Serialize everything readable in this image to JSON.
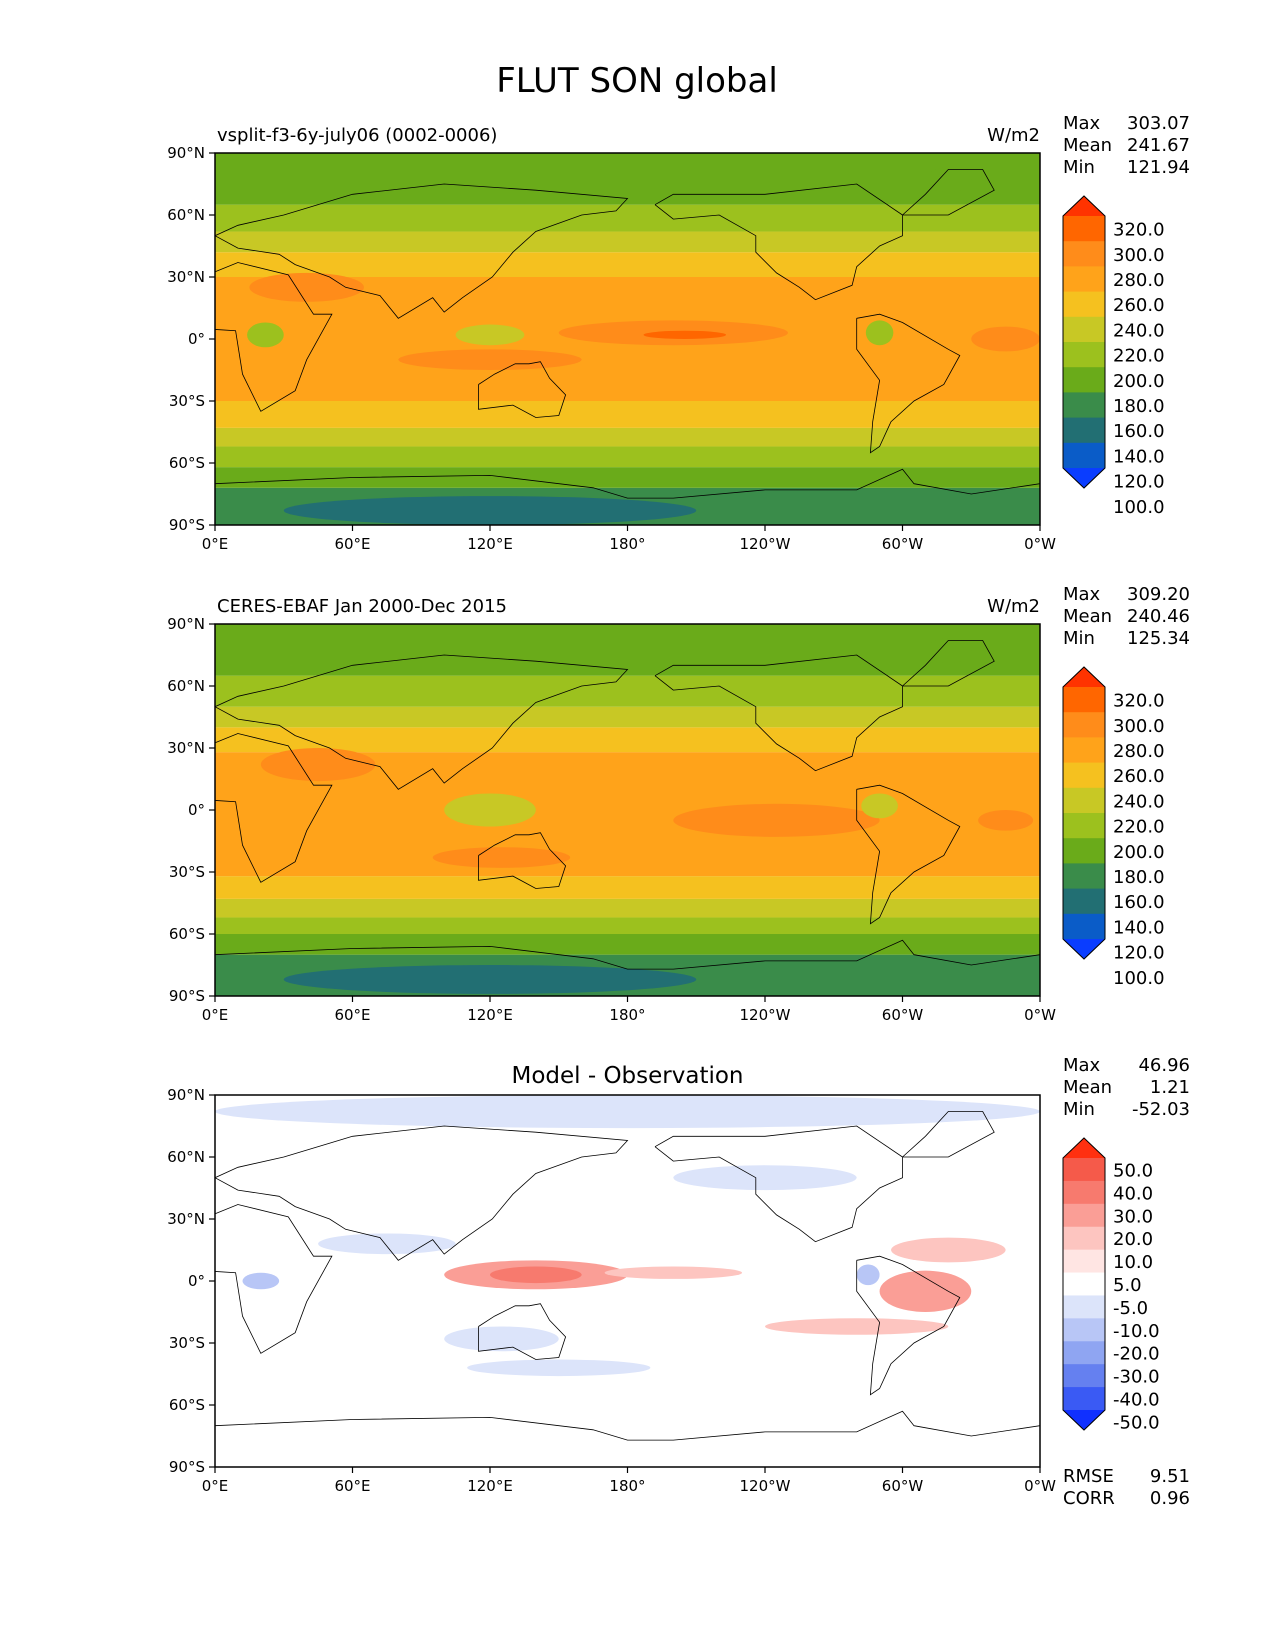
{
  "title": "FLUT SON global",
  "tick_labels": {
    "lat": [
      "90°N",
      "60°N",
      "30°N",
      "0°",
      "30°S",
      "60°S",
      "90°S"
    ],
    "lon": [
      "0°E",
      "60°E",
      "120°E",
      "180°",
      "120°W",
      "60°W",
      "0°W"
    ]
  },
  "panels": [
    {
      "id": "model",
      "left_label": "vsplit-f3-6y-july06 (0002-0006)",
      "units": "W/m2",
      "center_title": "",
      "stats": [
        {
          "label": "Max",
          "value": "303.07"
        },
        {
          "label": "Mean",
          "value": "241.67"
        },
        {
          "label": "Min",
          "value": "121.94"
        }
      ],
      "colorbar": {
        "labels": [
          "320.0",
          "300.0",
          "280.0",
          "260.0",
          "240.0",
          "220.0",
          "200.0",
          "180.0",
          "160.0",
          "140.0",
          "120.0",
          "100.0"
        ],
        "colors": [
          "#ff3300",
          "#ff6600",
          "#ff8c1a",
          "#ffa31a",
          "#f5c11f",
          "#c8c825",
          "#9cc11e",
          "#6aab1a",
          "#3a8c4a",
          "#226f73",
          "#0a5cc8",
          "#0a3dff"
        ]
      }
    },
    {
      "id": "obs",
      "left_label": "CERES-EBAF Jan 2000-Dec 2015",
      "units": "W/m2",
      "center_title": "",
      "stats": [
        {
          "label": "Max",
          "value": "309.20"
        },
        {
          "label": "Mean",
          "value": "240.46"
        },
        {
          "label": "Min",
          "value": "125.34"
        }
      ],
      "colorbar": {
        "labels": [
          "320.0",
          "300.0",
          "280.0",
          "260.0",
          "240.0",
          "220.0",
          "200.0",
          "180.0",
          "160.0",
          "140.0",
          "120.0",
          "100.0"
        ],
        "colors": [
          "#ff3300",
          "#ff6600",
          "#ff8c1a",
          "#ffa31a",
          "#f5c11f",
          "#c8c825",
          "#9cc11e",
          "#6aab1a",
          "#3a8c4a",
          "#226f73",
          "#0a5cc8",
          "#0a3dff"
        ]
      }
    },
    {
      "id": "diff",
      "left_label": "",
      "units": "",
      "center_title": "Model - Observation",
      "stats": [
        {
          "label": "Max",
          "value": "46.96"
        },
        {
          "label": "Mean",
          "value": "1.21"
        },
        {
          "label": "Min",
          "value": "-52.03"
        }
      ],
      "colorbar": {
        "labels": [
          "50.0",
          "40.0",
          "30.0",
          "20.0",
          "10.0",
          "5.0",
          "-5.0",
          "-10.0",
          "-20.0",
          "-30.0",
          "-40.0",
          "-50.0"
        ],
        "colors": [
          "#ff3010",
          "#f55a4a",
          "#f77a6e",
          "#fa9e96",
          "#fdc5c0",
          "#ffe5e3",
          "#ffffff",
          "#dce4fa",
          "#b8c6f6",
          "#8fa5f2",
          "#6580f0",
          "#3a5af4",
          "#1030ff"
        ]
      },
      "metrics": [
        {
          "label": "RMSE",
          "value": "9.51"
        },
        {
          "label": "CORR",
          "value": "0.96"
        }
      ]
    }
  ],
  "map_fields": {
    "model": [
      {
        "c": "#3a8c4a",
        "lat0": -90,
        "lat1": -72
      },
      {
        "c": "#6aab1a",
        "lat0": -72,
        "lat1": -62
      },
      {
        "c": "#9cc11e",
        "lat0": -62,
        "lat1": -52
      },
      {
        "c": "#c8c825",
        "lat0": -52,
        "lat1": -43
      },
      {
        "c": "#f5c11f",
        "lat0": -43,
        "lat1": -30
      },
      {
        "c": "#ffa31a",
        "lat0": -30,
        "lat1": 30
      },
      {
        "c": "#f5c11f",
        "lat0": 30,
        "lat1": 42
      },
      {
        "c": "#c8c825",
        "lat0": 42,
        "lat1": 52
      },
      {
        "c": "#9cc11e",
        "lat0": 52,
        "lat1": 65
      },
      {
        "c": "#6aab1a",
        "lat0": 65,
        "lat1": 90
      }
    ],
    "obs": [
      {
        "c": "#3a8c4a",
        "lat0": -90,
        "lat1": -70
      },
      {
        "c": "#6aab1a",
        "lat0": -70,
        "lat1": -60
      },
      {
        "c": "#9cc11e",
        "lat0": -60,
        "lat1": -52
      },
      {
        "c": "#c8c825",
        "lat0": -52,
        "lat1": -43
      },
      {
        "c": "#f5c11f",
        "lat0": -43,
        "lat1": -32
      },
      {
        "c": "#ffa31a",
        "lat0": -32,
        "lat1": 28
      },
      {
        "c": "#f5c11f",
        "lat0": 28,
        "lat1": 40
      },
      {
        "c": "#c8c825",
        "lat0": 40,
        "lat1": 50
      },
      {
        "c": "#9cc11e",
        "lat0": 50,
        "lat1": 65
      },
      {
        "c": "#6aab1a",
        "lat0": 65,
        "lat1": 90
      }
    ],
    "diff": [
      {
        "c": "#ffffff",
        "lat0": -90,
        "lat1": 90
      }
    ]
  },
  "blobs": {
    "model": [
      {
        "c": "#226f73",
        "lon": 120,
        "lat": -83,
        "rx": 90,
        "ry": 7
      },
      {
        "c": "#ff8c1a",
        "lon": 40,
        "lat": 25,
        "rx": 25,
        "ry": 7
      },
      {
        "c": "#ff8c1a",
        "lon": 200,
        "lat": 3,
        "rx": 50,
        "ry": 6
      },
      {
        "c": "#ff6600",
        "lon": 205,
        "lat": 2,
        "rx": 18,
        "ry": 2
      },
      {
        "c": "#ff8c1a",
        "lon": 345,
        "lat": 0,
        "rx": 15,
        "ry": 6
      },
      {
        "c": "#ff8c1a",
        "lon": 120,
        "lat": -10,
        "rx": 40,
        "ry": 5
      },
      {
        "c": "#9cc11e",
        "lon": 22,
        "lat": 2,
        "rx": 8,
        "ry": 6
      },
      {
        "c": "#9cc11e",
        "lon": 290,
        "lat": 3,
        "rx": 6,
        "ry": 6
      },
      {
        "c": "#c8c825",
        "lon": 120,
        "lat": 2,
        "rx": 15,
        "ry": 5
      },
      {
        "c": "#6aab1a",
        "lon": 320,
        "lat": 77,
        "rx": 10,
        "ry": 6
      }
    ],
    "obs": [
      {
        "c": "#226f73",
        "lon": 120,
        "lat": -82,
        "rx": 90,
        "ry": 7
      },
      {
        "c": "#ff8c1a",
        "lon": 45,
        "lat": 22,
        "rx": 25,
        "ry": 8
      },
      {
        "c": "#ff8c1a",
        "lon": 245,
        "lat": -5,
        "rx": 45,
        "ry": 8
      },
      {
        "c": "#ff8c1a",
        "lon": 125,
        "lat": -23,
        "rx": 30,
        "ry": 5
      },
      {
        "c": "#ff8c1a",
        "lon": 345,
        "lat": -5,
        "rx": 12,
        "ry": 5
      },
      {
        "c": "#c8c825",
        "lon": 120,
        "lat": 0,
        "rx": 20,
        "ry": 8
      },
      {
        "c": "#c8c825",
        "lon": 290,
        "lat": 2,
        "rx": 8,
        "ry": 6
      },
      {
        "c": "#6aab1a",
        "lon": 320,
        "lat": 77,
        "rx": 10,
        "ry": 6
      }
    ],
    "diff": [
      {
        "c": "#dce4fa",
        "lon": 180,
        "lat": 82,
        "rx": 180,
        "ry": 8
      },
      {
        "c": "#fa9e96",
        "lon": 140,
        "lat": 3,
        "rx": 40,
        "ry": 7
      },
      {
        "c": "#f77a6e",
        "lon": 140,
        "lat": 3,
        "rx": 20,
        "ry": 4
      },
      {
        "c": "#fdc5c0",
        "lon": 200,
        "lat": 4,
        "rx": 30,
        "ry": 3
      },
      {
        "c": "#fa9e96",
        "lon": 310,
        "lat": -5,
        "rx": 20,
        "ry": 10
      },
      {
        "c": "#fdc5c0",
        "lon": 320,
        "lat": 15,
        "rx": 25,
        "ry": 6
      },
      {
        "c": "#b8c6f6",
        "lon": 20,
        "lat": 0,
        "rx": 8,
        "ry": 4
      },
      {
        "c": "#b8c6f6",
        "lon": 285,
        "lat": 3,
        "rx": 5,
        "ry": 5
      },
      {
        "c": "#dce4fa",
        "lon": 125,
        "lat": -28,
        "rx": 25,
        "ry": 6
      },
      {
        "c": "#dce4fa",
        "lon": 150,
        "lat": -42,
        "rx": 40,
        "ry": 4
      },
      {
        "c": "#dce4fa",
        "lon": 75,
        "lat": 18,
        "rx": 30,
        "ry": 5
      },
      {
        "c": "#fdc5c0",
        "lon": 280,
        "lat": -22,
        "rx": 40,
        "ry": 4
      },
      {
        "c": "#dce4fa",
        "lon": 240,
        "lat": 50,
        "rx": 40,
        "ry": 6
      }
    ]
  }
}
